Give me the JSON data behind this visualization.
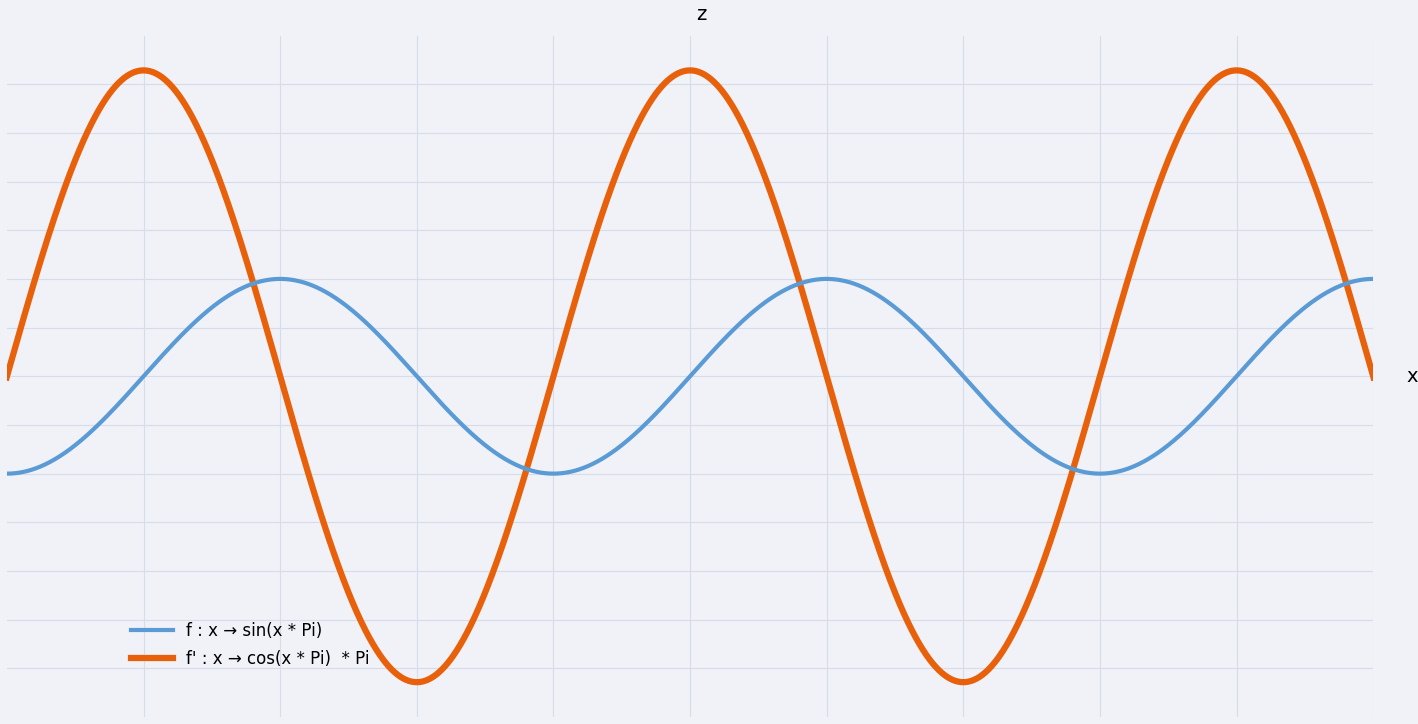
{
  "background_color": "#f0f2f8",
  "grid_color": "#d8dce8",
  "axis_color": "#000000",
  "sine_color": "#5b9bd5",
  "cosine_color": "#e8610a",
  "sine_linewidth": 3.0,
  "cosine_linewidth": 4.5,
  "x_min": -2.5,
  "x_max": 2.5,
  "y_min": -3.5,
  "y_max": 3.5,
  "legend_label_sine": "f : x → sin(x * Pi)",
  "legend_label_cosine": "f' : x → cos(x * Pi)  * Pi",
  "x_axis_label": "x",
  "z_axis_label": "z",
  "title_fontsize": 13,
  "legend_fontsize": 12
}
